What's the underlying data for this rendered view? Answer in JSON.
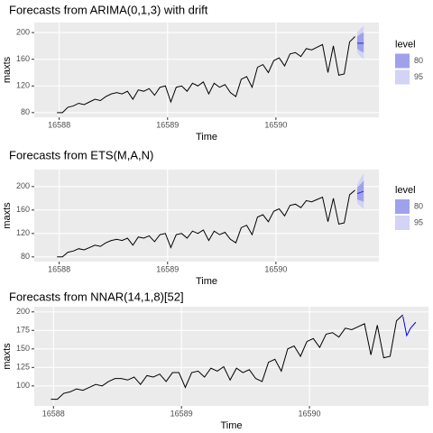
{
  "chart_data": [
    {
      "type": "line",
      "title": "Forecasts from ARIMA(0,1,3) with drift",
      "xlabel": "Time",
      "ylabel": "maxts",
      "xlim": [
        16587.77,
        16590.95
      ],
      "xticks": [
        16588,
        16589,
        16590
      ],
      "ylim": [
        73,
        215
      ],
      "yticks": [
        80,
        120,
        160,
        200
      ],
      "grid": true,
      "legend_title": "level",
      "series": [
        {
          "color": "#000000",
          "x": [
            16587.98,
            16588.03,
            16588.08,
            16588.13,
            16588.18,
            16588.23,
            16588.28,
            16588.33,
            16588.38,
            16588.43,
            16588.48,
            16588.53,
            16588.58,
            16588.63,
            16588.68,
            16588.73,
            16588.78,
            16588.83,
            16588.88,
            16588.93,
            16588.98,
            16589.03,
            16589.08,
            16589.13,
            16589.18,
            16589.23,
            16589.28,
            16589.33,
            16589.38,
            16589.43,
            16589.48,
            16589.53,
            16589.58,
            16589.63,
            16589.68,
            16589.73,
            16589.78,
            16589.83,
            16589.88,
            16589.93,
            16589.98,
            16590.03,
            16590.08,
            16590.13,
            16590.18,
            16590.23,
            16590.28,
            16590.33,
            16590.38,
            16590.43,
            16590.48,
            16590.53,
            16590.58,
            16590.63,
            16590.68,
            16590.73
          ],
          "values": [
            80,
            80,
            88,
            90,
            94,
            92,
            96,
            100,
            98,
            104,
            108,
            110,
            108,
            112,
            100,
            114,
            112,
            116,
            106,
            118,
            120,
            96,
            118,
            120,
            112,
            124,
            120,
            126,
            108,
            124,
            118,
            122,
            110,
            104,
            130,
            134,
            118,
            148,
            152,
            140,
            158,
            162,
            150,
            168,
            170,
            164,
            176,
            174,
            178,
            182,
            140,
            180,
            136,
            138,
            186,
            194
          ]
        },
        {
          "color": "#2b2bd0",
          "x": [
            16590.75,
            16590.78,
            16590.81
          ],
          "values": [
            184,
            184,
            184
          ]
        }
      ],
      "intervals": [
        {
          "level": 80,
          "color": "#9fa2ea",
          "x": [
            16590.75,
            16590.78,
            16590.81
          ],
          "lower": [
            176,
            172,
            170
          ],
          "upper": [
            194,
            198,
            200
          ]
        },
        {
          "level": 95,
          "color": "#d2d3f5",
          "x": [
            16590.75,
            16590.78,
            16590.81
          ],
          "lower": [
            170,
            164,
            160
          ],
          "upper": [
            200,
            206,
            210
          ]
        }
      ]
    },
    {
      "type": "line",
      "title": "Forecasts from ETS(M,A,N)",
      "xlabel": "Time",
      "ylabel": "maxts",
      "xlim": [
        16587.77,
        16590.95
      ],
      "xticks": [
        16588,
        16589,
        16590
      ],
      "ylim": [
        72,
        229
      ],
      "yticks": [
        80,
        120,
        160,
        200
      ],
      "grid": true,
      "legend_title": "level",
      "series": [
        {
          "color": "#000000",
          "x": [
            16587.98,
            16588.03,
            16588.08,
            16588.13,
            16588.18,
            16588.23,
            16588.28,
            16588.33,
            16588.38,
            16588.43,
            16588.48,
            16588.53,
            16588.58,
            16588.63,
            16588.68,
            16588.73,
            16588.78,
            16588.83,
            16588.88,
            16588.93,
            16588.98,
            16589.03,
            16589.08,
            16589.13,
            16589.18,
            16589.23,
            16589.28,
            16589.33,
            16589.38,
            16589.43,
            16589.48,
            16589.53,
            16589.58,
            16589.63,
            16589.68,
            16589.73,
            16589.78,
            16589.83,
            16589.88,
            16589.93,
            16589.98,
            16590.03,
            16590.08,
            16590.13,
            16590.18,
            16590.23,
            16590.28,
            16590.33,
            16590.38,
            16590.43,
            16590.48,
            16590.53,
            16590.58,
            16590.63,
            16590.68,
            16590.73
          ],
          "values": [
            80,
            80,
            88,
            90,
            94,
            92,
            96,
            100,
            98,
            104,
            108,
            110,
            108,
            112,
            100,
            114,
            112,
            116,
            106,
            118,
            120,
            96,
            118,
            120,
            112,
            124,
            120,
            126,
            108,
            124,
            118,
            122,
            110,
            104,
            130,
            134,
            118,
            148,
            152,
            140,
            158,
            162,
            150,
            168,
            170,
            164,
            176,
            174,
            178,
            182,
            140,
            180,
            136,
            138,
            186,
            194
          ]
        },
        {
          "color": "#2b2bd0",
          "x": [
            16590.75,
            16590.78,
            16590.81
          ],
          "values": [
            188,
            190,
            192
          ]
        }
      ],
      "intervals": [
        {
          "level": 80,
          "color": "#9fa2ea",
          "x": [
            16590.75,
            16590.78,
            16590.81
          ],
          "lower": [
            178,
            176,
            174
          ],
          "upper": [
            198,
            204,
            210
          ]
        },
        {
          "level": 95,
          "color": "#d2d3f5",
          "x": [
            16590.75,
            16590.78,
            16590.81
          ],
          "lower": [
            172,
            166,
            162
          ],
          "upper": [
            204,
            214,
            222
          ]
        }
      ]
    },
    {
      "type": "line",
      "title": "Forecasts from NNAR(14,1,8)[52]",
      "xlabel": "Time",
      "ylabel": "maxts",
      "xlim": [
        16587.85,
        16590.93
      ],
      "xticks": [
        16588,
        16589,
        16590
      ],
      "ylim": [
        73,
        207
      ],
      "yticks": [
        100,
        125,
        150,
        175,
        200
      ],
      "grid": true,
      "series": [
        {
          "color": "#000000",
          "x": [
            16587.98,
            16588.03,
            16588.08,
            16588.13,
            16588.18,
            16588.23,
            16588.28,
            16588.33,
            16588.38,
            16588.43,
            16588.48,
            16588.53,
            16588.58,
            16588.63,
            16588.68,
            16588.73,
            16588.78,
            16588.83,
            16588.88,
            16588.93,
            16588.98,
            16589.03,
            16589.08,
            16589.13,
            16589.18,
            16589.23,
            16589.28,
            16589.33,
            16589.38,
            16589.43,
            16589.48,
            16589.53,
            16589.58,
            16589.63,
            16589.68,
            16589.73,
            16589.78,
            16589.83,
            16589.88,
            16589.93,
            16589.98,
            16590.03,
            16590.08,
            16590.13,
            16590.18,
            16590.23,
            16590.28,
            16590.33,
            16590.38,
            16590.43,
            16590.48,
            16590.53,
            16590.58,
            16590.63,
            16590.68,
            16590.73
          ],
          "values": [
            82,
            82,
            90,
            92,
            96,
            94,
            98,
            102,
            100,
            106,
            110,
            110,
            108,
            112,
            102,
            114,
            112,
            116,
            106,
            118,
            118,
            98,
            118,
            120,
            112,
            124,
            120,
            126,
            108,
            124,
            118,
            122,
            110,
            106,
            132,
            136,
            120,
            150,
            154,
            140,
            160,
            164,
            152,
            170,
            172,
            166,
            178,
            176,
            180,
            184,
            142,
            182,
            138,
            140,
            188,
            196
          ]
        },
        {
          "color": "#0000ff",
          "x": [
            16590.73,
            16590.76,
            16590.79,
            16590.83
          ],
          "values": [
            194,
            168,
            178,
            186
          ]
        }
      ]
    }
  ]
}
